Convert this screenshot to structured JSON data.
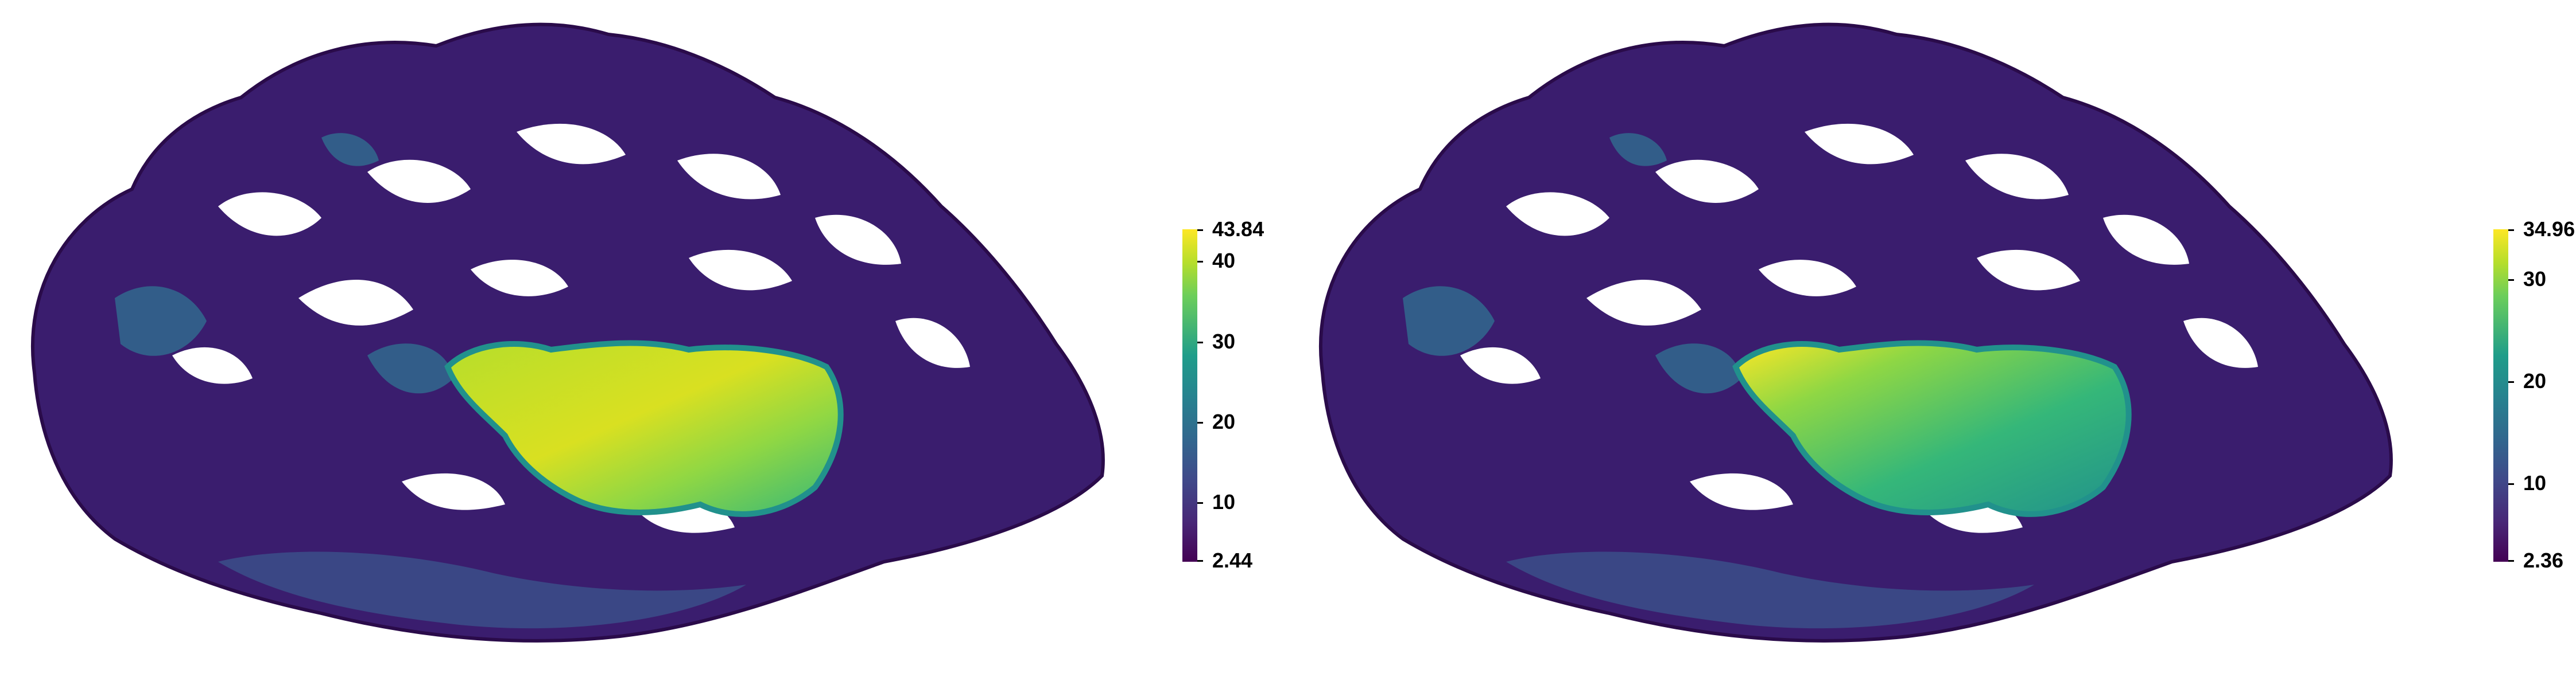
{
  "panels": [
    {
      "colorbar": {
        "max_label": "43.84",
        "min_label": "2.44",
        "max_value": 43.84,
        "min_value": 2.44,
        "ticks": [
          {
            "value": 40,
            "label": "40"
          },
          {
            "value": 30,
            "label": "30"
          },
          {
            "value": 20,
            "label": "20"
          },
          {
            "value": 10,
            "label": "10"
          }
        ]
      },
      "hotspot_level": 1.0
    },
    {
      "colorbar": {
        "max_label": "34.96",
        "min_label": "2.36",
        "max_value": 34.96,
        "min_value": 2.36,
        "ticks": [
          {
            "value": 30,
            "label": "30"
          },
          {
            "value": 20,
            "label": "20"
          },
          {
            "value": 10,
            "label": "10"
          }
        ]
      },
      "hotspot_level": 0.72
    }
  ],
  "colormap": "viridis",
  "colors": {
    "low": "#440154",
    "mid_low": "#3b528b",
    "mid": "#21918c",
    "mid_high": "#5ec962",
    "high": "#fde725",
    "background": "#ffffff"
  }
}
